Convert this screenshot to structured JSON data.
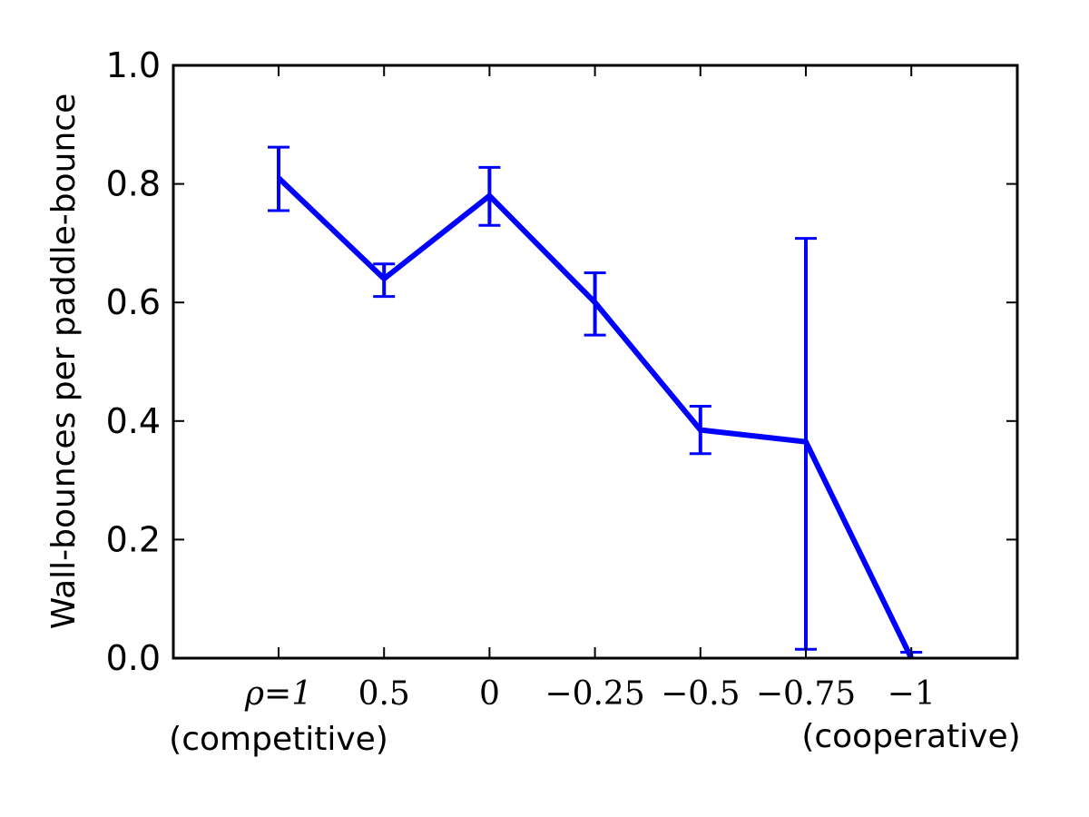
{
  "chart_data": {
    "type": "line",
    "title": "",
    "ylabel": "Wall-bounces per paddle-bounce",
    "xlabel": "",
    "categories": [
      "ρ=1",
      "0.5",
      "0",
      "−0.25",
      "−0.5",
      "−0.75",
      "−1"
    ],
    "x_annotations": {
      "left": "(competitive)",
      "right": "(cooperative)"
    },
    "ylim": [
      0.0,
      1.0
    ],
    "yticks": [
      "0.0",
      "0.2",
      "0.4",
      "0.6",
      "0.8",
      "1.0"
    ],
    "grid": false,
    "series": [
      {
        "values": [
          0.81,
          0.64,
          0.78,
          0.6,
          0.385,
          0.365,
          0.0
        ],
        "error_low": [
          0.755,
          0.61,
          0.73,
          0.545,
          0.345,
          0.015,
          0.0
        ],
        "error_high": [
          0.862,
          0.665,
          0.828,
          0.65,
          0.425,
          0.708,
          0.01
        ],
        "color": "#0000ff"
      }
    ]
  }
}
